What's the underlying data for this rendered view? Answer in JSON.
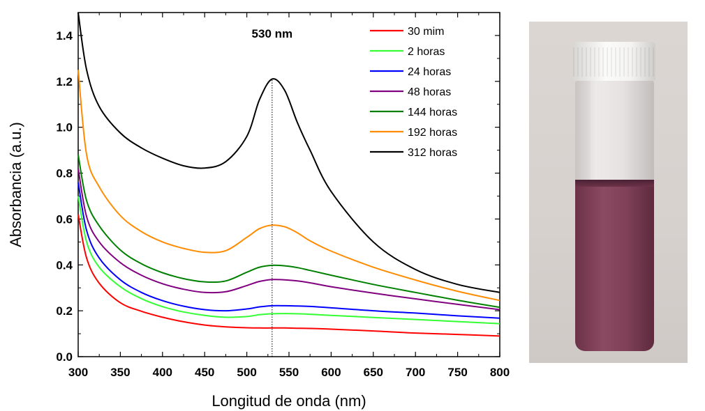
{
  "chart_data": {
    "type": "line",
    "xlabel": "Longitud de onda (nm)",
    "ylabel": "Absorbancia (a.u.)",
    "xlim": [
      300,
      800
    ],
    "ylim": [
      0.0,
      1.5
    ],
    "x_ticks": [
      "300",
      "350",
      "400",
      "450",
      "500",
      "550",
      "600",
      "650",
      "700",
      "750",
      "800"
    ],
    "y_ticks": [
      "0.0",
      "0.2",
      "0.4",
      "0.6",
      "0.8",
      "1.0",
      "1.2",
      "1.4"
    ],
    "grid": false,
    "legend_position": "top-right",
    "annotation": {
      "text": "530 nm",
      "x": 530
    },
    "x": [
      300,
      310,
      325,
      350,
      375,
      400,
      425,
      450,
      475,
      500,
      515,
      530,
      545,
      560,
      575,
      600,
      650,
      700,
      750,
      800
    ],
    "series": [
      {
        "name": "30 mim",
        "color": "#ff0000",
        "values": [
          0.62,
          0.43,
          0.32,
          0.235,
          0.198,
          0.172,
          0.152,
          0.138,
          0.13,
          0.126,
          0.125,
          0.125,
          0.125,
          0.124,
          0.123,
          0.12,
          0.112,
          0.103,
          0.097,
          0.09
        ]
      },
      {
        "name": "2 horas",
        "color": "#33ff33",
        "values": [
          0.7,
          0.5,
          0.39,
          0.305,
          0.253,
          0.218,
          0.195,
          0.18,
          0.172,
          0.175,
          0.183,
          0.187,
          0.188,
          0.187,
          0.185,
          0.18,
          0.171,
          0.162,
          0.153,
          0.144
        ]
      },
      {
        "name": "24 horas",
        "color": "#0000ff",
        "values": [
          0.76,
          0.55,
          0.43,
          0.335,
          0.28,
          0.244,
          0.22,
          0.205,
          0.2,
          0.208,
          0.217,
          0.222,
          0.222,
          0.221,
          0.219,
          0.213,
          0.2,
          0.19,
          0.178,
          0.168
        ]
      },
      {
        "name": "48 horas",
        "color": "#800080",
        "values": [
          0.82,
          0.61,
          0.5,
          0.41,
          0.355,
          0.318,
          0.294,
          0.28,
          0.283,
          0.31,
          0.328,
          0.336,
          0.335,
          0.33,
          0.322,
          0.305,
          0.277,
          0.252,
          0.228,
          0.205
        ]
      },
      {
        "name": "144 horas",
        "color": "#008000",
        "values": [
          0.88,
          0.68,
          0.57,
          0.465,
          0.405,
          0.366,
          0.34,
          0.326,
          0.33,
          0.368,
          0.39,
          0.398,
          0.396,
          0.388,
          0.376,
          0.355,
          0.315,
          0.28,
          0.246,
          0.215
        ]
      },
      {
        "name": "192 horas",
        "color": "#ff8c00",
        "values": [
          1.25,
          0.88,
          0.74,
          0.615,
          0.545,
          0.5,
          0.472,
          0.455,
          0.462,
          0.52,
          0.558,
          0.573,
          0.566,
          0.54,
          0.505,
          0.46,
          0.39,
          0.334,
          0.285,
          0.245
        ]
      },
      {
        "name": "312 horas",
        "color": "#000000",
        "values": [
          1.5,
          1.25,
          1.09,
          0.975,
          0.91,
          0.865,
          0.832,
          0.822,
          0.85,
          0.96,
          1.12,
          1.21,
          1.16,
          1.02,
          0.9,
          0.72,
          0.5,
          0.38,
          0.315,
          0.28
        ]
      }
    ]
  },
  "photo": {
    "caption": ""
  }
}
